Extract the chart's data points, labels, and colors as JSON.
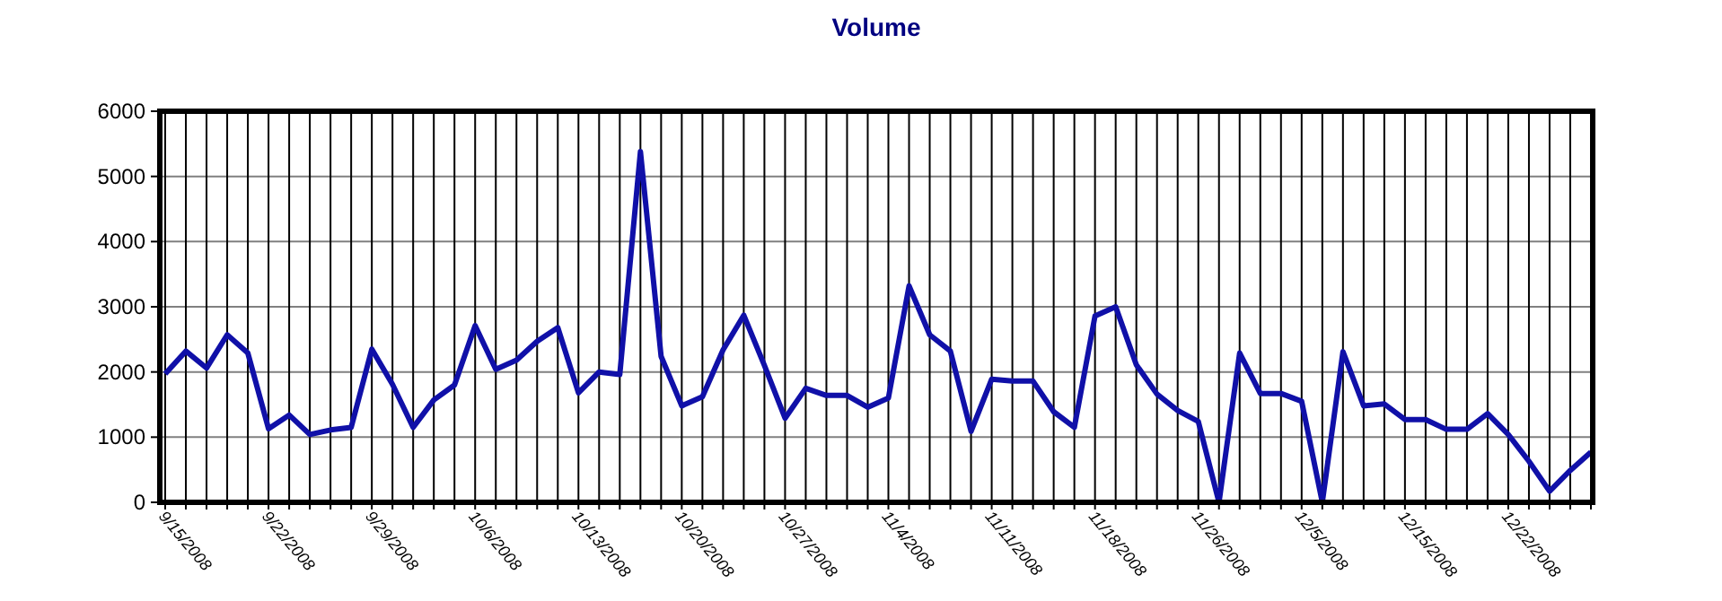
{
  "chart_data": {
    "type": "line",
    "title": "Volume",
    "categories": [
      "9/15/2008",
      null,
      null,
      null,
      null,
      "9/22/2008",
      null,
      null,
      null,
      null,
      "9/29/2008",
      null,
      null,
      null,
      null,
      "10/6/2008",
      null,
      null,
      null,
      null,
      "10/13/2008",
      null,
      null,
      null,
      null,
      "10/20/2008",
      null,
      null,
      null,
      null,
      "10/27/2008",
      null,
      null,
      null,
      null,
      "11/4/2008",
      null,
      null,
      null,
      null,
      "11/11/2008",
      null,
      null,
      null,
      null,
      "11/18/2008",
      null,
      null,
      null,
      null,
      "11/26/2008",
      null,
      null,
      null,
      null,
      "12/5/2008",
      null,
      null,
      null,
      null,
      "12/15/2008",
      null,
      null,
      null,
      null,
      "12/22/2008",
      null,
      null,
      null,
      null
    ],
    "series": [
      {
        "color": "#1010a8",
        "values": [
          1970,
          2320,
          2060,
          2570,
          2290,
          1130,
          1340,
          1040,
          1110,
          1150,
          2350,
          1810,
          1150,
          1570,
          1800,
          2710,
          2040,
          2180,
          2470,
          2680,
          1680,
          2000,
          1960,
          5380,
          2240,
          1480,
          1620,
          2340,
          2870,
          2100,
          1290,
          1750,
          1640,
          1640,
          1460,
          1600,
          3320,
          2570,
          2320,
          1090,
          1890,
          1860,
          1860,
          1390,
          1150,
          2860,
          3000,
          2110,
          1660,
          1410,
          1240,
          0,
          2290,
          1670,
          1670,
          1550,
          0,
          2310,
          1480,
          1510,
          1270,
          1270,
          1120,
          1120,
          1360,
          1040,
          630,
          170,
          490,
          770
        ]
      }
    ],
    "ylim": [
      0,
      6000
    ],
    "yticks": [
      0,
      1000,
      2000,
      3000,
      4000,
      5000,
      6000
    ],
    "grid": true,
    "marker": "none",
    "line_style": "solid"
  }
}
